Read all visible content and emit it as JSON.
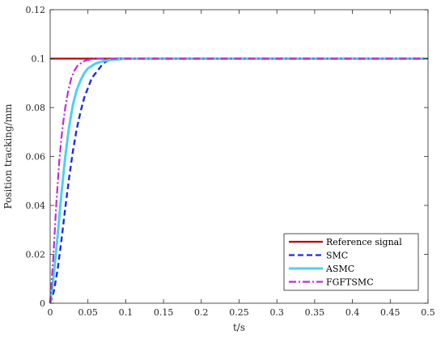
{
  "chart_data": {
    "type": "line",
    "title": "",
    "xlabel": "t/s",
    "ylabel": "Position tracking/mm",
    "xlim": [
      0,
      0.5
    ],
    "ylim": [
      0,
      0.12
    ],
    "xticks": [
      0,
      0.05,
      0.1,
      0.15,
      0.2,
      0.25,
      0.3,
      0.35,
      0.4,
      0.45,
      0.5
    ],
    "xtick_labels": [
      "0",
      "0.05",
      "0.1",
      "0.15",
      "0.2",
      "0.25",
      "0.3",
      "0.35",
      "0.4",
      "0.45",
      "0.5"
    ],
    "yticks": [
      0,
      0.02,
      0.04,
      0.06,
      0.08,
      0.1,
      0.12
    ],
    "ytick_labels": [
      "0",
      "0.02",
      "0.04",
      "0.06",
      "0.08",
      "0.1",
      "0.12"
    ],
    "grid": false,
    "legend_position": "bottom-right",
    "series": [
      {
        "name": "Reference signal",
        "color": "#c00000",
        "style": "solid",
        "x": [
          0,
          0.05,
          0.1,
          0.15,
          0.2,
          0.25,
          0.3,
          0.35,
          0.4,
          0.45,
          0.5
        ],
        "y": [
          0.1,
          0.1,
          0.1,
          0.1,
          0.1,
          0.1,
          0.1,
          0.1,
          0.1,
          0.1,
          0.1
        ]
      },
      {
        "name": "SMC",
        "color": "#1f2fd6",
        "style": "dashed",
        "x": [
          0,
          0.005,
          0.01,
          0.015,
          0.02,
          0.025,
          0.03,
          0.035,
          0.04,
          0.045,
          0.05,
          0.055,
          0.06,
          0.065,
          0.07,
          0.075,
          0.08,
          0.09,
          0.1,
          0.12,
          0.15,
          0.2,
          0.3,
          0.4,
          0.5
        ],
        "y": [
          0,
          0.005,
          0.014,
          0.026,
          0.039,
          0.051,
          0.062,
          0.071,
          0.078,
          0.084,
          0.088,
          0.092,
          0.094,
          0.096,
          0.098,
          0.099,
          0.0995,
          0.1,
          0.1,
          0.1,
          0.1,
          0.1,
          0.1,
          0.1,
          0.1
        ]
      },
      {
        "name": "ASMC",
        "color": "#4dd2ee",
        "style": "solid",
        "x": [
          0,
          0.005,
          0.01,
          0.015,
          0.02,
          0.025,
          0.03,
          0.035,
          0.04,
          0.045,
          0.05,
          0.055,
          0.06,
          0.065,
          0.07,
          0.08,
          0.09,
          0.1,
          0.12,
          0.15,
          0.2,
          0.3,
          0.4,
          0.5
        ],
        "y": [
          0,
          0.012,
          0.028,
          0.045,
          0.06,
          0.072,
          0.081,
          0.087,
          0.091,
          0.094,
          0.096,
          0.097,
          0.098,
          0.0985,
          0.099,
          0.0995,
          0.0997,
          0.1,
          0.1,
          0.1,
          0.1,
          0.1,
          0.1,
          0.1
        ]
      },
      {
        "name": "FGFTSMC",
        "color": "#c62ad1",
        "style": "dashdot",
        "x": [
          0,
          0.004,
          0.008,
          0.012,
          0.016,
          0.02,
          0.024,
          0.028,
          0.032,
          0.036,
          0.04,
          0.045,
          0.05,
          0.06,
          0.07,
          0.1,
          0.15,
          0.2,
          0.3,
          0.4,
          0.5
        ],
        "y": [
          0,
          0.018,
          0.04,
          0.058,
          0.071,
          0.08,
          0.087,
          0.092,
          0.095,
          0.097,
          0.098,
          0.099,
          0.0995,
          0.1,
          0.1,
          0.1,
          0.1,
          0.1,
          0.1,
          0.1,
          0.1
        ]
      }
    ]
  }
}
